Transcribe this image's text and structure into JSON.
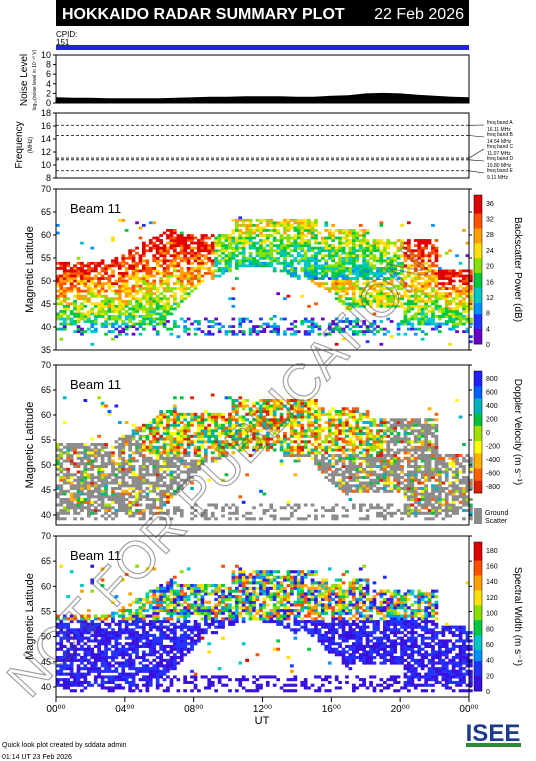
{
  "header": {
    "title": "HOKKAIDO RADAR SUMMARY PLOT",
    "date": "22 Feb 2026",
    "cpid_label": "CPID:",
    "cpid_value": "151"
  },
  "colors": {
    "header_bg": "#000000",
    "header_text": "#ffffff",
    "cpid_bar": "#2222ee",
    "ground_scatter": "#8c8c8c"
  },
  "chart_data": [
    {
      "id": "noise",
      "type": "area",
      "ylabel": "Noise Level",
      "ylabel2": "log₁₀(noise level in 10⁻¹⁰ V)",
      "yticks": [
        "0",
        "2",
        "4",
        "6",
        "8",
        "10"
      ],
      "ylim": [
        0,
        10
      ],
      "xlim": [
        0,
        24
      ],
      "x": [
        0,
        1,
        2,
        3,
        4,
        5,
        6,
        7,
        8,
        9,
        10,
        11,
        12,
        13,
        14,
        15,
        16,
        17,
        18,
        19,
        20,
        21,
        22,
        23,
        24
      ],
      "values": [
        1.2,
        1.1,
        1.1,
        1.0,
        1.0,
        1.0,
        1.0,
        1.1,
        1.2,
        1.3,
        1.3,
        1.4,
        1.4,
        1.4,
        1.3,
        1.3,
        1.5,
        1.6,
        2.0,
        2.1,
        2.0,
        1.7,
        1.5,
        1.3,
        1.2
      ]
    },
    {
      "id": "frequency",
      "type": "line",
      "ylabel": "Frequency",
      "ylabel2": "(MHz)",
      "yticks": [
        "8",
        "10",
        "12",
        "14",
        "16",
        "18"
      ],
      "ylim": [
        8,
        18
      ],
      "xlim": [
        0,
        24
      ],
      "series": [
        {
          "name": "freq band A",
          "freq": "16.11 MHz",
          "value": 16.11
        },
        {
          "name": "freq band B",
          "freq": "14.54 MHz",
          "value": 14.54
        },
        {
          "name": "freq band C",
          "freq": "11.07 MHz",
          "value": 11.07
        },
        {
          "name": "freq band D",
          "freq": "10.80 MHz",
          "value": 10.8
        },
        {
          "name": "freq band E",
          "freq": "9.11 MHz",
          "value": 9.11
        }
      ]
    },
    {
      "id": "power",
      "type": "heatmap",
      "beam_label": "Beam 11",
      "ylabel": "Magnetic Latitude",
      "yticks": [
        "35",
        "40",
        "45",
        "50",
        "55",
        "60",
        "65",
        "70"
      ],
      "ylim": [
        35,
        70
      ],
      "xlim": [
        0,
        24
      ],
      "colorbar_label": "Backscatter Power (dB)",
      "colorbar_ticks": [
        "0",
        "4",
        "8",
        "12",
        "16",
        "20",
        "24",
        "28",
        "32",
        "36"
      ],
      "colorbar_range": [
        0,
        38
      ]
    },
    {
      "id": "velocity",
      "type": "heatmap",
      "beam_label": "Beam 11",
      "ylabel": "Magnetic Latitude",
      "yticks": [
        "40",
        "45",
        "50",
        "55",
        "60",
        "65",
        "70"
      ],
      "ylim": [
        38,
        70
      ],
      "xlim": [
        0,
        24
      ],
      "colorbar_label": "Doppler Velocity (m s⁻¹)",
      "colorbar_ticks": [
        "800",
        "600",
        "400",
        "200",
        "0",
        "-200",
        "-400",
        "-600",
        "-800"
      ],
      "colorbar_range": [
        -900,
        900
      ],
      "ground_scatter_label": "Ground",
      "ground_scatter_label2": "Scatter"
    },
    {
      "id": "width",
      "type": "heatmap",
      "beam_label": "Beam 11",
      "ylabel": "Magnetic Latitude",
      "yticks": [
        "40",
        "45",
        "50",
        "55",
        "60",
        "65",
        "70"
      ],
      "ylim": [
        38,
        70
      ],
      "xlim": [
        0,
        24
      ],
      "xticks": [
        "00⁰⁰",
        "04⁰⁰",
        "08⁰⁰",
        "12⁰⁰",
        "16⁰⁰",
        "20⁰⁰",
        "00⁰⁰"
      ],
      "xlabel": "UT",
      "colorbar_label": "Spectral Width (m s⁻¹)",
      "colorbar_ticks": [
        "0",
        "20",
        "40",
        "60",
        "80",
        "100",
        "120",
        "140",
        "160",
        "180"
      ],
      "colorbar_range": [
        0,
        190
      ]
    }
  ],
  "watermark": "NOT FOR PUBLICATION",
  "footer": {
    "line1": "Quick look plot created by sddata admin",
    "line2": "01:14 UT 23 Feb 2026",
    "logo_text": "ISEE"
  }
}
